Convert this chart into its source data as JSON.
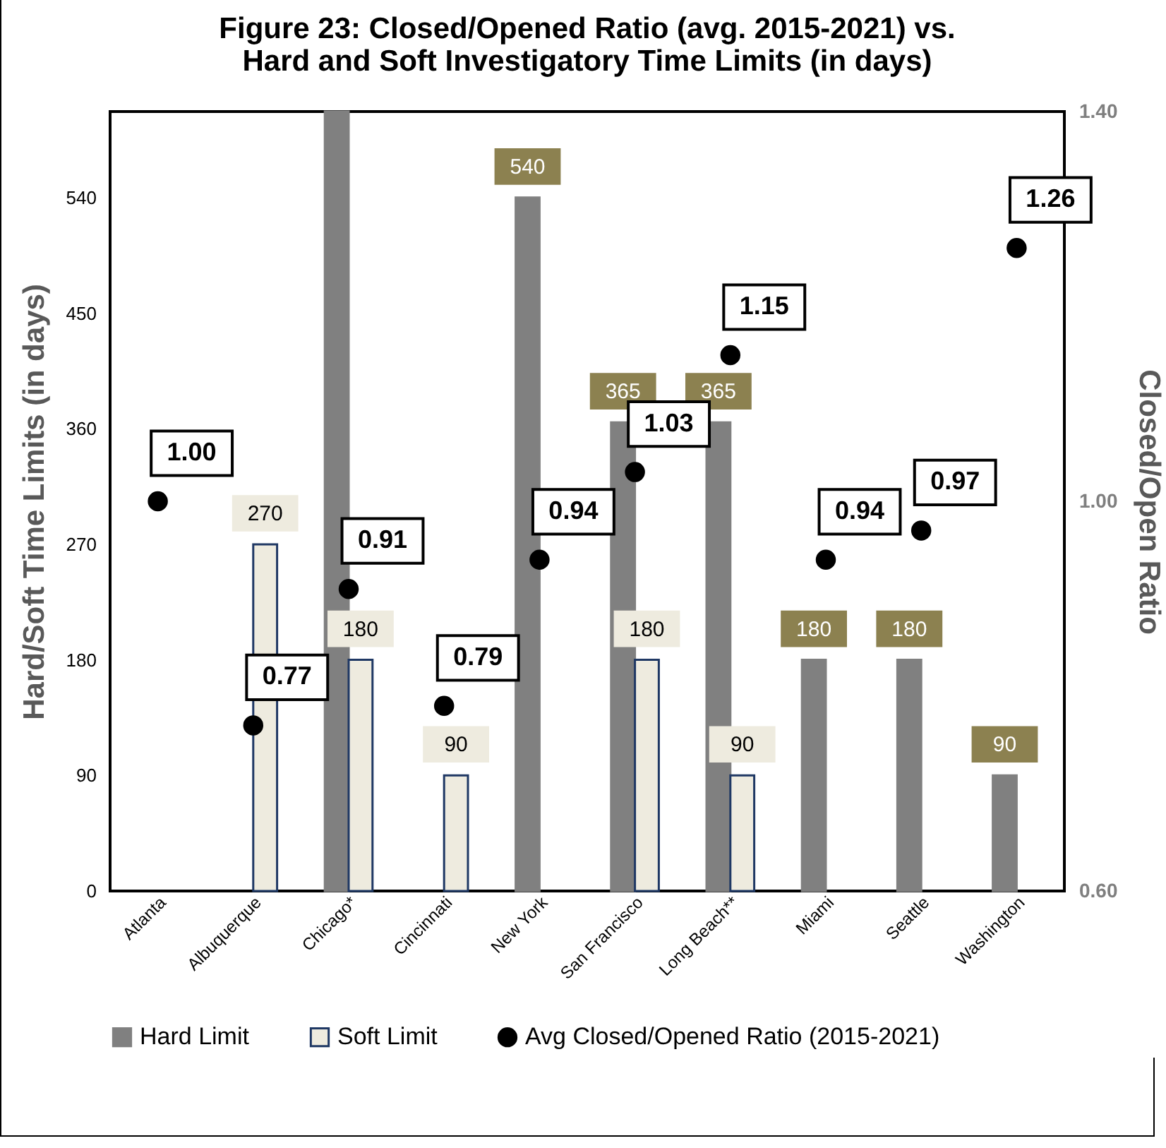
{
  "chart_data": {
    "type": "bar",
    "title": "Figure 23: Closed/Opened Ratio (avg. 2015-2021) vs.\nHard and Soft Investigatory Time Limits (in days)",
    "categories": [
      "Atlanta",
      "Albuquerque",
      "Chicago*",
      "Cincinnati",
      "New York",
      "San Francisco",
      "Long Beach**",
      "Miami",
      "Seattle",
      "Washington"
    ],
    "series": [
      {
        "name": "Hard Limit",
        "color": "#808080",
        "values": [
          null,
          null,
          607,
          null,
          540,
          365,
          365,
          180,
          180,
          90
        ],
        "value_labels": [
          null,
          null,
          null,
          null,
          "540",
          "365",
          "365",
          "180",
          "180",
          "90"
        ]
      },
      {
        "name": "Soft Limit",
        "color": "#eeebdf",
        "values": [
          null,
          270,
          180,
          90,
          null,
          180,
          90,
          null,
          null,
          null
        ],
        "value_labels": [
          null,
          "270",
          "180",
          "90",
          null,
          "180",
          "90",
          null,
          null,
          null
        ]
      },
      {
        "name": "Avg Closed/Opened Ratio (2015-2021)",
        "type": "scatter",
        "axis": "y2",
        "color": "#000000",
        "values": [
          1.0,
          0.77,
          0.91,
          0.79,
          0.94,
          1.03,
          1.15,
          0.94,
          0.97,
          1.26
        ],
        "value_labels": [
          "1.00",
          "0.77",
          "0.91",
          "0.79",
          "0.94",
          "1.03",
          "1.15",
          "0.94",
          "0.97",
          "1.26"
        ]
      }
    ],
    "ylabel": "Hard/Soft Time Limits (in days)",
    "y2label": "Closed/Open Ratio",
    "ylim": [
      0,
      607
    ],
    "yticks": [
      0,
      90,
      180,
      270,
      360,
      450,
      540
    ],
    "y2lim": [
      0.6,
      1.4
    ],
    "y2ticks": [
      {
        "value": 0.6,
        "label": "0.60"
      },
      {
        "value": 1.0,
        "label": "1.00"
      },
      {
        "value": 1.4,
        "label": "1.40"
      }
    ],
    "legend": "bottom",
    "grid": false,
    "marker": "circle"
  }
}
